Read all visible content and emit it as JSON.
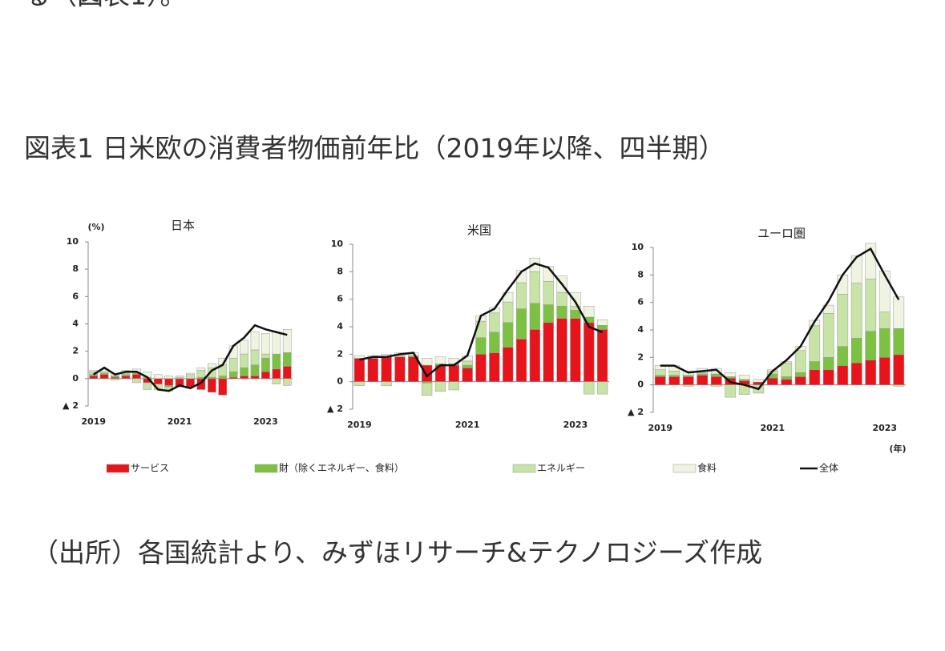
{
  "intro": "る（図表1）。",
  "title": "図表1 日米欧の消費者物価前年比（2019年以降、四半期）",
  "source": "（出所）各国統計より、みずほリサーチ&テクノロジーズ作成",
  "chart_data": [
    {
      "type": "bar",
      "stacked": true,
      "title": "日本",
      "y_unit": "(%)",
      "categories": [
        "2019",
        null,
        null,
        null,
        null,
        null,
        null,
        null,
        "2021",
        null,
        null,
        null,
        null,
        null,
        null,
        null,
        "2023",
        null,
        null
      ],
      "ylim": [
        -2,
        10
      ],
      "yticks": [
        {
          "value": -2,
          "label": "▲ 2"
        },
        0,
        2,
        4,
        6,
        8,
        10
      ],
      "series": [
        {
          "name": "サービス",
          "color": "#e8141b",
          "values": [
            0.2,
            0.3,
            0.1,
            0.2,
            0.3,
            -0.3,
            -0.4,
            -0.5,
            -0.6,
            -0.6,
            -0.8,
            -1.0,
            -1.2,
            0.1,
            0.2,
            0.2,
            0.5,
            0.7,
            0.9
          ]
        },
        {
          "name": "財（除くエネルギー、食料）",
          "color": "#7dc142",
          "values": [
            0.1,
            0.1,
            0.1,
            0.1,
            0.1,
            0.1,
            0.0,
            -0.1,
            0.0,
            0.0,
            0.1,
            0.1,
            0.2,
            0.4,
            0.6,
            0.8,
            1.0,
            1.1,
            1.0
          ]
        },
        {
          "name": "エネルギー",
          "color": "#c7e3a5",
          "values": [
            0.2,
            0.1,
            -0.1,
            0.1,
            -0.3,
            -0.5,
            -0.4,
            -0.3,
            0.1,
            0.3,
            0.5,
            0.7,
            0.8,
            1.0,
            1.0,
            1.1,
            0.3,
            -0.4,
            -0.5
          ]
        },
        {
          "name": "食料",
          "color": "#eef4e0",
          "values": [
            0.1,
            0.2,
            0.2,
            0.2,
            0.3,
            0.4,
            0.3,
            0.2,
            0.1,
            0.1,
            0.2,
            0.3,
            0.5,
            0.9,
            1.0,
            1.3,
            1.5,
            1.6,
            1.7
          ]
        },
        {
          "name": "全体",
          "color": "#111111",
          "type": "line",
          "values": [
            0.3,
            0.8,
            0.3,
            0.5,
            0.5,
            0.1,
            -0.8,
            -0.9,
            -0.5,
            -0.7,
            -0.3,
            0.6,
            1.0,
            2.4,
            3.0,
            3.9,
            3.6,
            3.4,
            3.2
          ]
        }
      ]
    },
    {
      "type": "bar",
      "stacked": true,
      "title": "米国",
      "categories": [
        "2019",
        null,
        null,
        null,
        null,
        null,
        null,
        null,
        "2021",
        null,
        null,
        null,
        null,
        null,
        null,
        null,
        "2023",
        null,
        null
      ],
      "ylim": [
        -2,
        10
      ],
      "yticks": [
        {
          "value": -2,
          "label": "▲ 2"
        },
        0,
        2,
        4,
        6,
        8,
        10
      ],
      "series": [
        {
          "name": "サービス",
          "color": "#e8141b",
          "values": [
            1.7,
            1.7,
            1.8,
            1.8,
            1.8,
            1.2,
            1.2,
            1.2,
            1.0,
            2.0,
            2.1,
            2.5,
            3.1,
            3.8,
            4.3,
            4.6,
            4.6,
            4.3,
            3.8
          ]
        },
        {
          "name": "財（除くエネルギー、食料）",
          "color": "#7dc142",
          "values": [
            0.0,
            0.0,
            0.0,
            0.0,
            0.1,
            -0.1,
            0.1,
            0.1,
            0.2,
            1.2,
            1.5,
            1.8,
            2.2,
            1.9,
            1.3,
            0.9,
            0.6,
            0.4,
            0.3
          ]
        },
        {
          "name": "エネルギー",
          "color": "#c7e3a5",
          "values": [
            -0.3,
            0.1,
            -0.3,
            0.1,
            0.0,
            -0.9,
            -0.7,
            -0.6,
            0.3,
            1.2,
            1.4,
            1.5,
            1.9,
            2.3,
            1.7,
            1.0,
            0.3,
            -0.9,
            -0.9
          ]
        },
        {
          "name": "食料",
          "color": "#eef4e0",
          "values": [
            0.2,
            0.1,
            0.2,
            0.2,
            0.2,
            0.5,
            0.5,
            0.4,
            0.4,
            0.4,
            0.4,
            0.7,
            0.9,
            1.0,
            1.1,
            1.2,
            1.0,
            0.8,
            0.4
          ]
        },
        {
          "name": "全体",
          "color": "#111111",
          "type": "line",
          "values": [
            1.6,
            1.8,
            1.8,
            2.0,
            2.1,
            0.4,
            1.2,
            1.2,
            1.9,
            4.8,
            5.3,
            6.7,
            8.0,
            8.6,
            8.3,
            7.1,
            5.8,
            4.0,
            3.6
          ]
        }
      ]
    },
    {
      "type": "bar",
      "stacked": true,
      "title": "ユーロ圏",
      "x_unit": "(年)",
      "categories": [
        "2019",
        null,
        null,
        null,
        null,
        null,
        null,
        null,
        "2021",
        null,
        null,
        null,
        null,
        null,
        null,
        null,
        "2023",
        null
      ],
      "ylim": [
        -2,
        10
      ],
      "yticks": [
        {
          "value": -2,
          "label": "▲ 2"
        },
        0,
        2,
        4,
        6,
        8,
        10
      ],
      "series": [
        {
          "name": "サービス",
          "color": "#e8141b",
          "values": [
            0.6,
            0.6,
            0.6,
            0.7,
            0.6,
            0.5,
            0.3,
            0.2,
            0.5,
            0.4,
            0.6,
            1.1,
            1.1,
            1.4,
            1.6,
            1.8,
            2.0,
            2.2
          ]
        },
        {
          "name": "財（除くエネルギー、食料）",
          "color": "#7dc142",
          "values": [
            0.1,
            0.1,
            0.1,
            0.1,
            0.2,
            0.1,
            0.1,
            0.0,
            0.3,
            0.2,
            0.3,
            0.6,
            0.9,
            1.4,
            1.8,
            2.1,
            2.1,
            1.9
          ]
        },
        {
          "name": "エネルギー",
          "color": "#c7e3a5",
          "values": [
            0.4,
            0.3,
            -0.1,
            0.1,
            -0.1,
            -0.9,
            -0.7,
            -0.6,
            0.2,
            1.0,
            1.6,
            2.6,
            3.2,
            3.8,
            4.0,
            3.8,
            1.2,
            -0.1
          ]
        },
        {
          "name": "食料",
          "color": "#eef4e0",
          "values": [
            0.3,
            0.4,
            0.3,
            0.3,
            0.4,
            0.3,
            0.3,
            0.2,
            0.1,
            0.1,
            0.3,
            0.4,
            0.6,
            1.4,
            2.0,
            2.6,
            3.0,
            2.3
          ]
        },
        {
          "name": "全体",
          "color": "#111111",
          "type": "line",
          "values": [
            1.4,
            1.4,
            0.9,
            1.0,
            1.1,
            0.2,
            0.0,
            -0.3,
            1.0,
            1.8,
            2.8,
            4.6,
            6.1,
            8.0,
            9.3,
            9.9,
            8.0,
            6.2
          ]
        }
      ]
    }
  ]
}
